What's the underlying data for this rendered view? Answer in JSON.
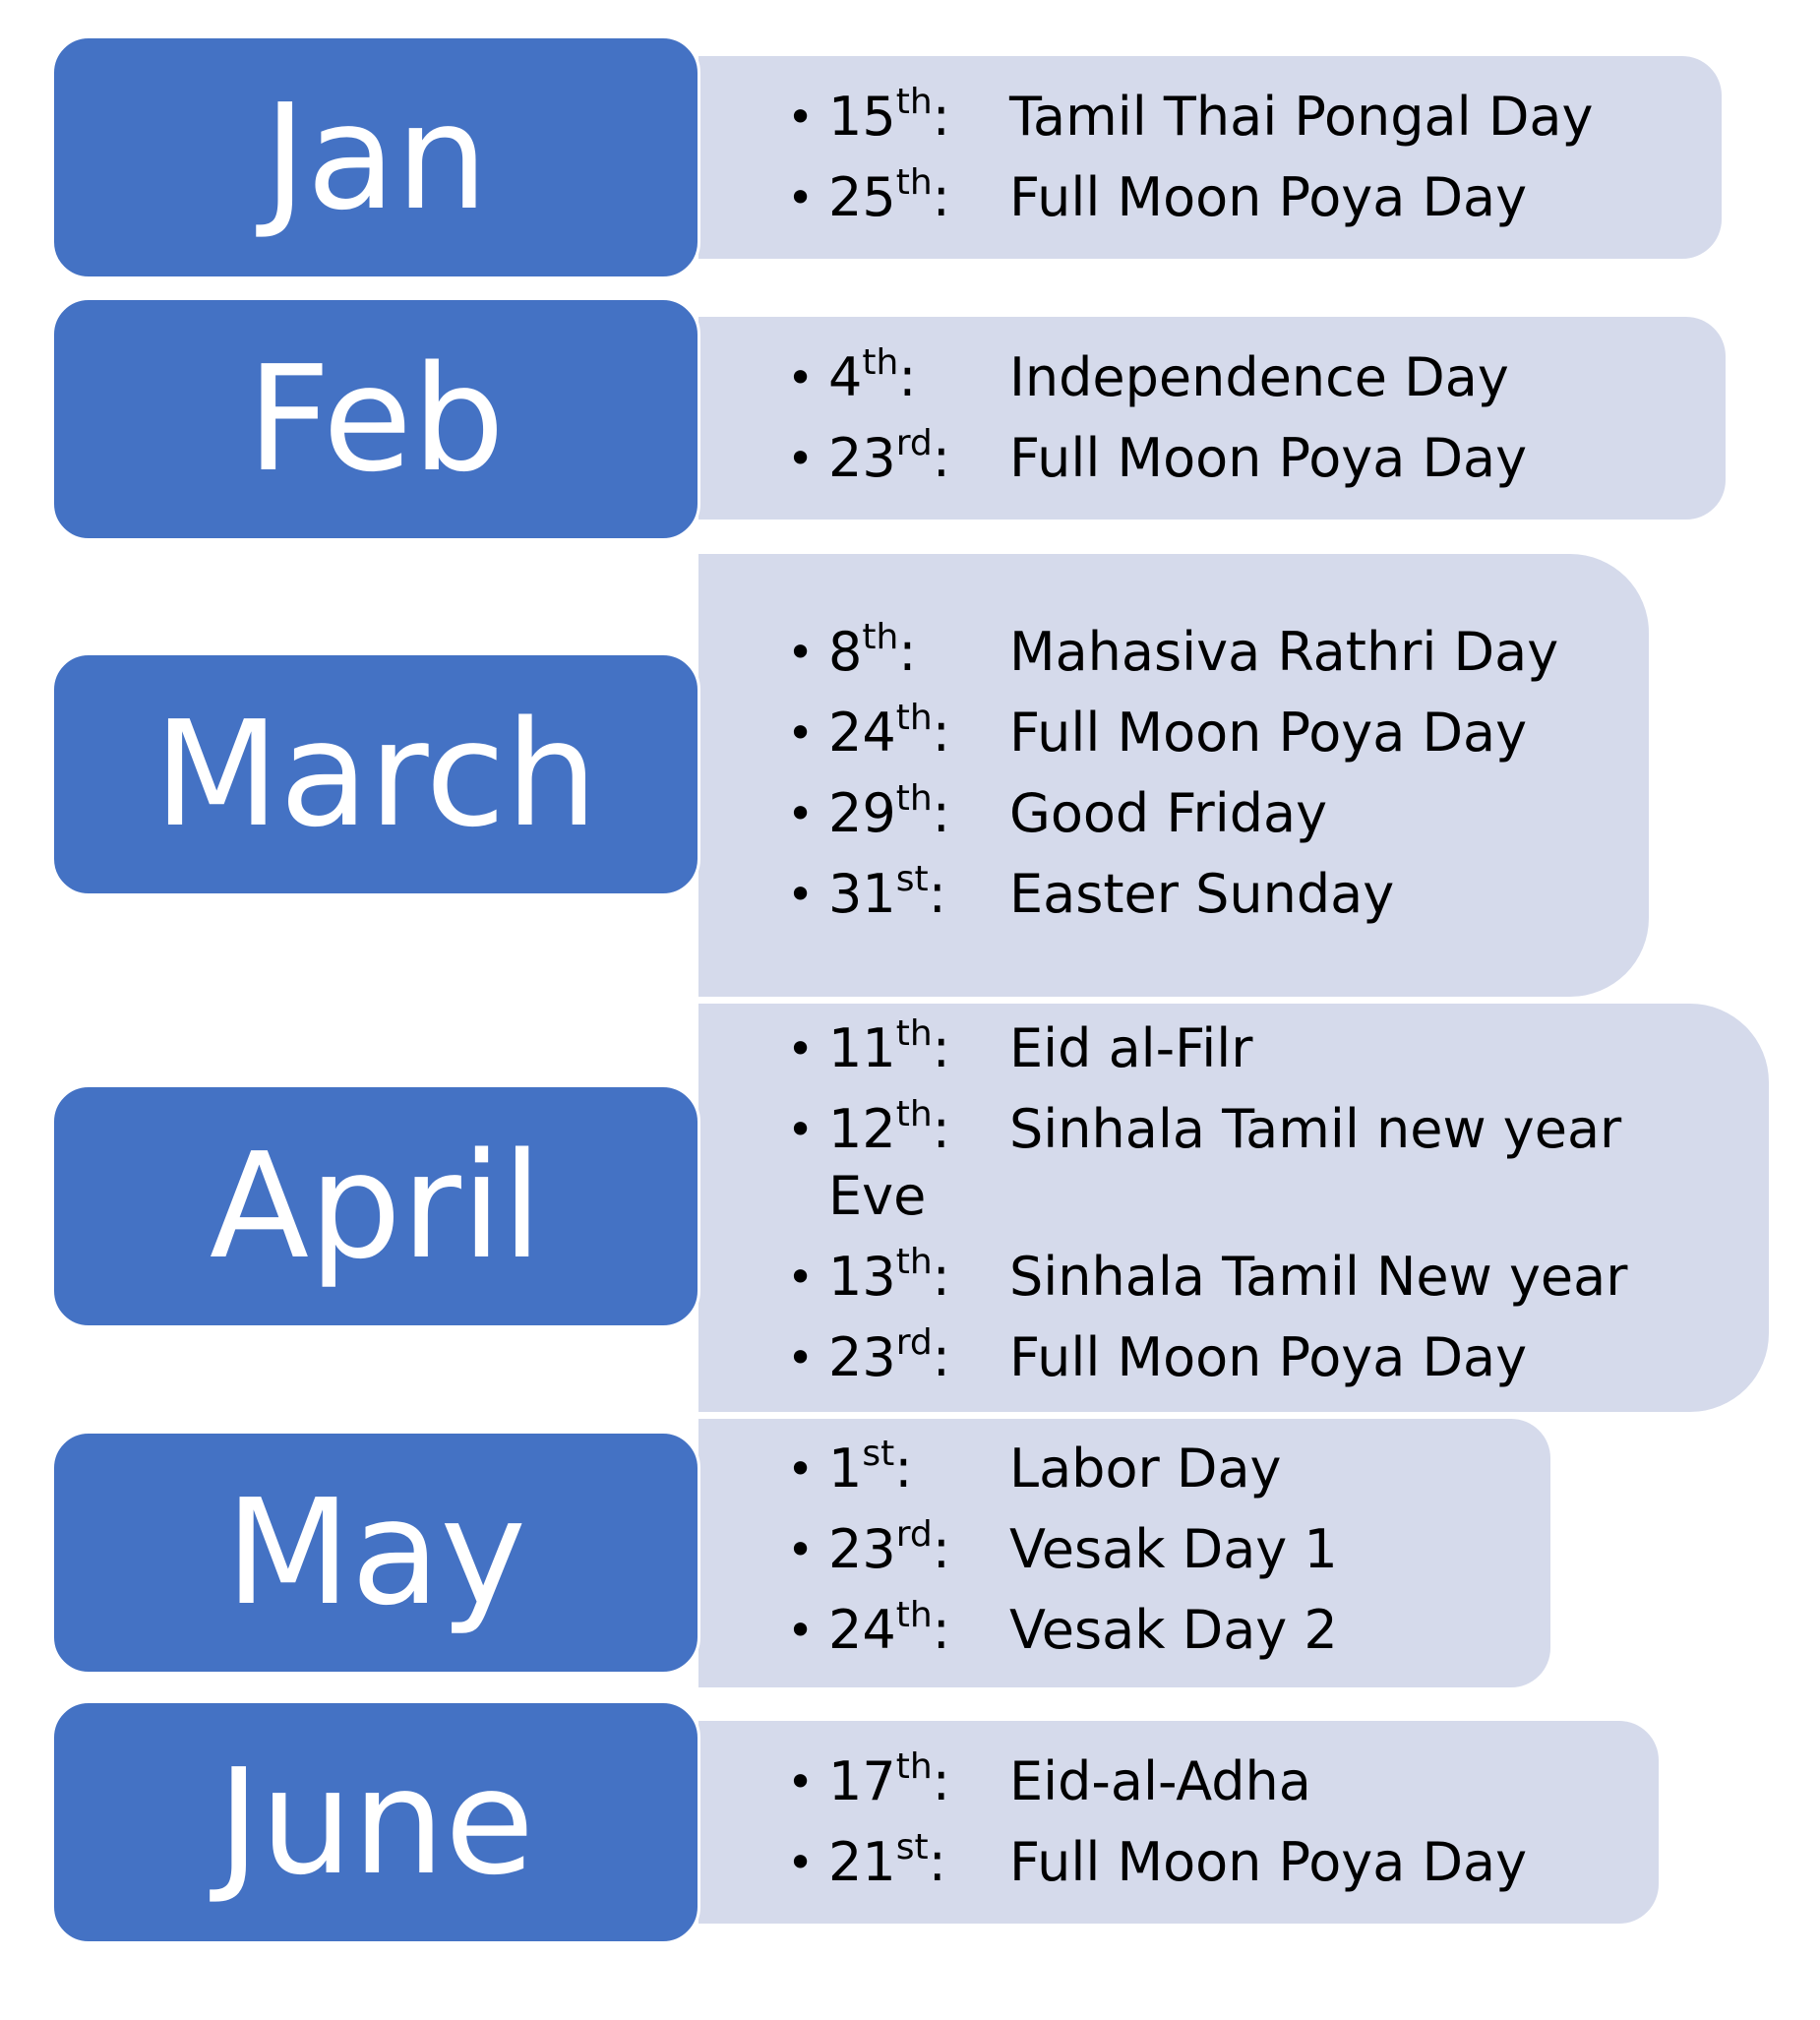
{
  "months": [
    {
      "label": "Jan",
      "events": [
        {
          "day": "15",
          "suffix": "th",
          "colon": ":",
          "name": "Tamil Thai Pongal Day",
          "cont": ""
        },
        {
          "day": "25",
          "suffix": "th",
          "colon": ":",
          "name": "Full Moon Poya Day",
          "cont": ""
        }
      ]
    },
    {
      "label": "Feb",
      "events": [
        {
          "day": "4",
          "suffix": "th",
          "colon": ":",
          "name": "Independence Day",
          "cont": ""
        },
        {
          "day": "23",
          "suffix": "rd",
          "colon": ":",
          "name": "Full Moon Poya Day",
          "cont": ""
        }
      ]
    },
    {
      "label": "March",
      "events": [
        {
          "day": "8",
          "suffix": "th",
          "colon": ":",
          "name": "Mahasiva Rathri Day",
          "cont": ""
        },
        {
          "day": "24",
          "suffix": "th",
          "colon": ":",
          "name": "Full Moon Poya Day",
          "cont": ""
        },
        {
          "day": "29",
          "suffix": "th",
          "colon": ":",
          "name": "Good Friday",
          "cont": ""
        },
        {
          "day": "31",
          "suffix": "st",
          "colon": ":",
          "name": "Easter Sunday",
          "cont": ""
        }
      ]
    },
    {
      "label": "April",
      "events": [
        {
          "day": "11",
          "suffix": "th",
          "colon": ":",
          "name": "Eid al-Filr",
          "cont": ""
        },
        {
          "day": "12",
          "suffix": "th",
          "colon": ":",
          "name": "Sinhala Tamil new year",
          "cont": "Eve"
        },
        {
          "day": "13",
          "suffix": "th",
          "colon": ":",
          "name": "Sinhala Tamil New year",
          "cont": ""
        },
        {
          "day": "23",
          "suffix": "rd",
          "colon": ":",
          "name": "Full Moon Poya Day",
          "cont": ""
        }
      ]
    },
    {
      "label": "May",
      "events": [
        {
          "day": "1",
          "suffix": "st",
          "colon": ":",
          "name": "Labor Day",
          "cont": ""
        },
        {
          "day": "23",
          "suffix": "rd",
          "colon": ":",
          "name": "Vesak Day 1",
          "cont": ""
        },
        {
          "day": "24",
          "suffix": "th",
          "colon": ":",
          "name": "Vesak Day 2",
          "cont": ""
        }
      ]
    },
    {
      "label": "June",
      "events": [
        {
          "day": "17",
          "suffix": "th",
          "colon": ":",
          "name": "Eid-al-Adha",
          "cont": ""
        },
        {
          "day": "21",
          "suffix": "st",
          "colon": ":",
          "name": "Full Moon Poya Day",
          "cont": ""
        }
      ]
    }
  ],
  "colors": {
    "tab": "#4472c4",
    "panel": "#d5daeb",
    "tab_text": "#ffffff",
    "event_text": "#000000"
  }
}
